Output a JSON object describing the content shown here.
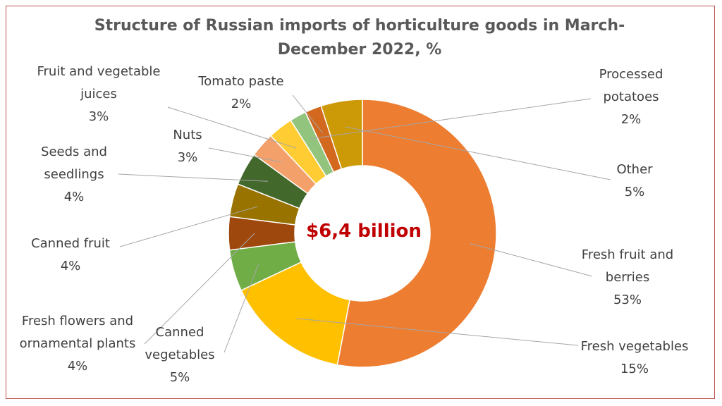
{
  "chart_data": {
    "type": "pie",
    "subtype": "donut",
    "title": "Structure of Russian imports of horticulture goods in March-December 2022, %",
    "center_label": "$6,4 billion",
    "unit": "%",
    "slices": [
      {
        "label": "Fresh fruit and berries",
        "value": 53,
        "value_label": "53%",
        "color": "#ed7d31"
      },
      {
        "label": "Fresh vegetables",
        "value": 15,
        "value_label": "15%",
        "color": "#ffc000"
      },
      {
        "label": "Canned vegetables",
        "value": 5,
        "value_label": "5%",
        "color": "#70ad47"
      },
      {
        "label": "Fresh flowers and ornamental plants",
        "value": 4,
        "value_label": "4%",
        "color": "#9e480e"
      },
      {
        "label": "Canned fruit",
        "value": 4,
        "value_label": "4%",
        "color": "#997300"
      },
      {
        "label": "Seeds and seedlings",
        "value": 4,
        "value_label": "4%",
        "color": "#43682b"
      },
      {
        "label": "Nuts",
        "value": 3,
        "value_label": "3%",
        "color": "#f4a06a"
      },
      {
        "label": "Fruit and vegetable juices",
        "value": 3,
        "value_label": "3%",
        "color": "#ffcd33"
      },
      {
        "label": "Processed potatoes",
        "value": 2,
        "value_label": "2%",
        "color": "#93c47d"
      },
      {
        "label": "Tomato paste",
        "value": 2,
        "value_label": "2%",
        "color": "#d2691e"
      },
      {
        "label": "Other",
        "value": 5,
        "value_label": "5%",
        "color": "#cc9a06"
      }
    ],
    "legend": "none"
  }
}
